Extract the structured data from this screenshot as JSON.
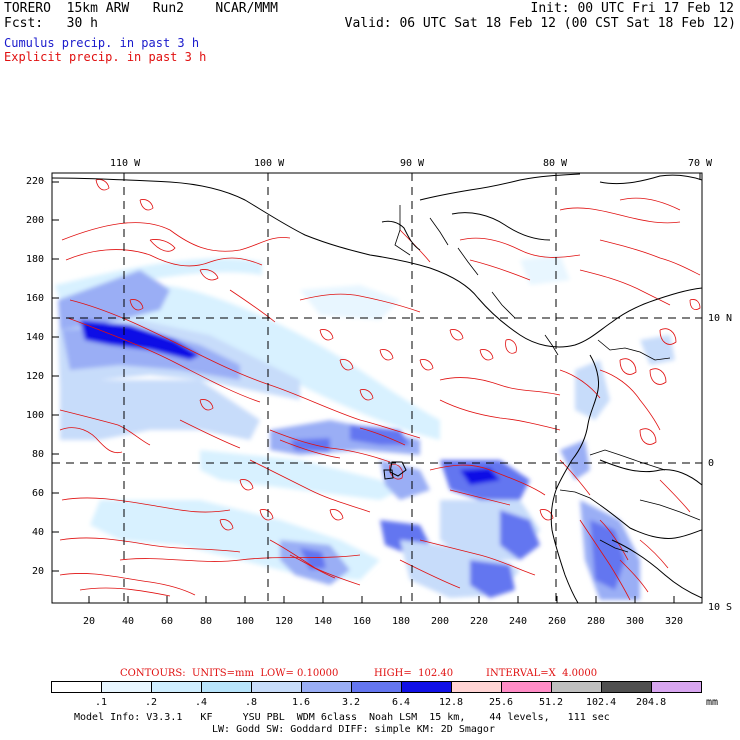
{
  "header": {
    "model_line": "TORERO  15km ARW   Run2    NCAR/MMM",
    "init_line": "Init: 00 UTC Fri 17 Feb 12",
    "fcst_line": "Fcst:   30 h",
    "valid_line": "Valid: 06 UTC Sat 18 Feb 12 (00 CST Sat 18 Feb 12)",
    "legend_cumulus": "Cumulus precip. in past 3 h",
    "legend_explicit": "Explicit precip. in past 3 h"
  },
  "axes": {
    "top_longitudes": [
      "110 W",
      "100 W",
      "90 W",
      "80 W",
      "70 W"
    ],
    "right_latitudes": [
      "10 N",
      "0",
      "10 S"
    ],
    "y_ticks": [
      "220",
      "200",
      "180",
      "160",
      "140",
      "120",
      "100",
      "80",
      "60",
      "40",
      "20"
    ],
    "x_ticks": [
      "20",
      "40",
      "60",
      "80",
      "100",
      "120",
      "140",
      "160",
      "180",
      "200",
      "220",
      "240",
      "260",
      "280",
      "300",
      "320"
    ]
  },
  "contour_info": {
    "label": "CONTOURS:  UNITS=mm  LOW= 0.10000",
    "high": "HIGH=  102.40",
    "interval": "INTERVAL=X  4.0000"
  },
  "colorbar": {
    "labels": [
      ".1",
      ".2",
      ".4",
      ".8",
      "1.6",
      "3.2",
      "6.4",
      "12.8",
      "25.6",
      "51.2",
      "102.4",
      "204.8"
    ],
    "units": "mm",
    "colors": [
      "#ffffff",
      "#e8f6ff",
      "#cfeeff",
      "#b8e4fb",
      "#c7dcfa",
      "#9aaef5",
      "#6476f0",
      "#1010e6",
      "#ffd4d4",
      "#ff8cc6",
      "#bfbfbf",
      "#505050",
      "#d8a6f0"
    ]
  },
  "footer": {
    "line1": "Model Info: V3.3.1   KF     YSU PBL  WDM 6class  Noah LSM  15 km,    44 levels,   111 sec",
    "line2": "LW: Godd SW: Goddard DIFF: simple KM: 2D Smagor"
  },
  "map_layers": [
    "precipitation-shading",
    "precip-contours",
    "coastline",
    "country-borders",
    "lat-lon-grid"
  ]
}
